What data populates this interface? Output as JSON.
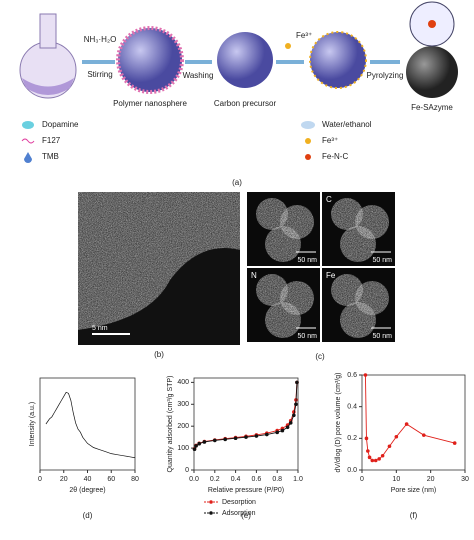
{
  "schematic": {
    "steps": [
      "NH₃·H₂O",
      "Stirring",
      "Polymer nanosphere",
      "Washing",
      "Carbon precursor",
      "Fe³⁺",
      "Pyrolyzing",
      "Fe-SAzyme"
    ],
    "legend": [
      "Dopamine",
      "F127",
      "TMB",
      "Water/ethanol",
      "Fe³⁺",
      "Fe-N-C"
    ],
    "panel": "(a)"
  },
  "microscopy": {
    "b_scale": "5 nm",
    "b_panel": "(b)",
    "c_panel": "(c)",
    "tiles": [
      {
        "scale": "50 nm",
        "color": "#9a9a9a"
      },
      {
        "element": "C",
        "scale": "50 nm",
        "color": "#e0201a"
      },
      {
        "element": "N",
        "scale": "50 nm",
        "color": "#4cc9c9"
      },
      {
        "element": "Fe",
        "scale": "50 nm",
        "color": "#2a3fa8"
      }
    ]
  },
  "chart_data": [
    {
      "type": "line",
      "panel": "(d)",
      "xlabel": "2θ (degree)",
      "ylabel": "Intensity (a.u.)",
      "color": "#111",
      "x": [
        5,
        8,
        10,
        12,
        14,
        16,
        18,
        20,
        22,
        24,
        26,
        28,
        30,
        32,
        34,
        36,
        40,
        45,
        50,
        55,
        60,
        65,
        70,
        75,
        80
      ],
      "values": [
        0.55,
        0.6,
        0.62,
        0.66,
        0.7,
        0.74,
        0.78,
        0.82,
        0.86,
        0.85,
        0.78,
        0.66,
        0.56,
        0.5,
        0.47,
        0.42,
        0.36,
        0.32,
        0.3,
        0.28,
        0.26,
        0.25,
        0.24,
        0.23,
        0.22
      ],
      "xlim": [
        0,
        80
      ],
      "xticks": [
        0,
        20,
        40,
        60,
        80
      ],
      "ylim": [
        0.1,
        1
      ]
    },
    {
      "type": "line",
      "panel": "(e)",
      "xlabel": "Relative pressure (P/P0)",
      "ylabel": "Quantity adsorbed (cm³/g STP)",
      "markers": true,
      "x": [
        0.005,
        0.02,
        0.05,
        0.1,
        0.2,
        0.3,
        0.4,
        0.5,
        0.6,
        0.7,
        0.8,
        0.85,
        0.9,
        0.93,
        0.96,
        0.98,
        0.99
      ],
      "series": [
        {
          "name": "Desorption",
          "color": "#e0201a",
          "values": [
            97,
            112,
            122,
            130,
            137,
            143,
            148,
            154,
            160,
            168,
            180,
            190,
            205,
            225,
            265,
            320,
            400
          ]
        },
        {
          "name": "Adsorption",
          "color": "#111",
          "values": [
            95,
            110,
            120,
            128,
            135,
            140,
            145,
            150,
            155,
            162,
            172,
            180,
            195,
            215,
            250,
            300,
            400
          ]
        }
      ],
      "xlim": [
        0,
        1
      ],
      "xticks": [
        {
          "value": 0,
          "label": "0.0"
        },
        0.2,
        0.4,
        0.6,
        0.8,
        {
          "value": 1,
          "label": "1.0"
        }
      ],
      "ylim": [
        0,
        420
      ],
      "yticks": [
        0,
        100,
        200,
        300,
        400
      ]
    },
    {
      "type": "line",
      "panel": "(f)",
      "xlabel": "Pore size (nm)",
      "ylabel": "dV/dlog (D) pore volume (cm³/g)",
      "markers": true,
      "color": "#e0201a",
      "x": [
        1,
        1.3,
        1.7,
        2.2,
        3,
        4,
        5,
        6,
        8,
        10,
        13,
        18,
        27
      ],
      "values": [
        0.6,
        0.2,
        0.12,
        0.08,
        0.06,
        0.06,
        0.07,
        0.09,
        0.15,
        0.21,
        0.29,
        0.22,
        0.17
      ],
      "xlim": [
        0,
        30
      ],
      "xticks": [
        0,
        10,
        20,
        30
      ],
      "ylim": [
        0,
        0.6
      ],
      "yticks": [
        {
          "value": 0,
          "label": "0.0"
        },
        0.2,
        0.4,
        0.6
      ]
    }
  ]
}
